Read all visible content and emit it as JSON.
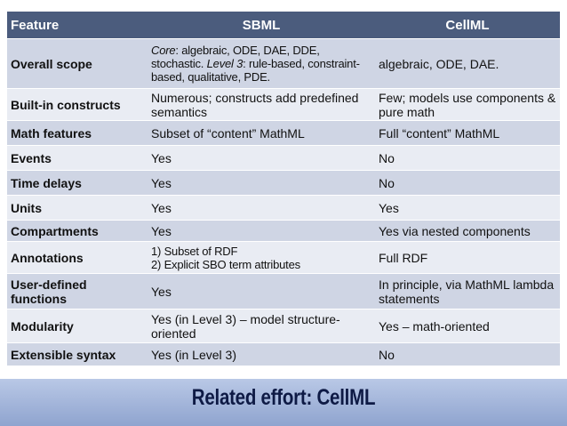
{
  "table": {
    "headers": [
      "Feature",
      "SBML",
      "CellML"
    ],
    "rows": [
      {
        "feature": "Overall scope",
        "sbml": {
          "core_em": "Core",
          "core_rest": ": algebraic, ODE, DAE, DDE, stochastic. ",
          "level_em": "Level 3",
          "level_rest": ": rule-based, constraint-based, qualitative, PDE."
        },
        "cellml": "algebraic, ODE, DAE."
      },
      {
        "feature": "Built-in constructs",
        "sbml": "Numerous; constructs add predefined semantics",
        "cellml": "Few; models use components & pure math"
      },
      {
        "feature": "Math features",
        "sbml": "Subset of “content” MathML",
        "cellml": "Full “content” MathML"
      },
      {
        "feature": "Events",
        "sbml": "Yes",
        "cellml": "No"
      },
      {
        "feature": "Time delays",
        "sbml": "Yes",
        "cellml": "No"
      },
      {
        "feature": "Units",
        "sbml": "Yes",
        "cellml": "Yes"
      },
      {
        "feature": "Compartments",
        "sbml": "Yes",
        "cellml": "Yes via nested components"
      },
      {
        "feature": "Annotations",
        "sbml_line1": "1) Subset of RDF",
        "sbml_line2": "2) Explicit SBO term attributes",
        "cellml": "Full RDF"
      },
      {
        "feature": "User-defined functions",
        "sbml": "Yes",
        "cellml": "In principle, via MathML lambda statements"
      },
      {
        "feature": "Modularity",
        "sbml": "Yes (in Level 3) – model structure-oriented",
        "cellml": "Yes – math-oriented"
      },
      {
        "feature": "Extensible syntax",
        "sbml": "Yes (in Level 3)",
        "cellml": "No"
      }
    ]
  },
  "footer": {
    "title": "Related effort: CellML"
  },
  "colors": {
    "header_bg": "#4b5c7d",
    "row_odd": "#cfd5e4",
    "row_even": "#e9ecf3",
    "footer_bg": "#a3b5da",
    "footer_text": "#0e1a45"
  }
}
